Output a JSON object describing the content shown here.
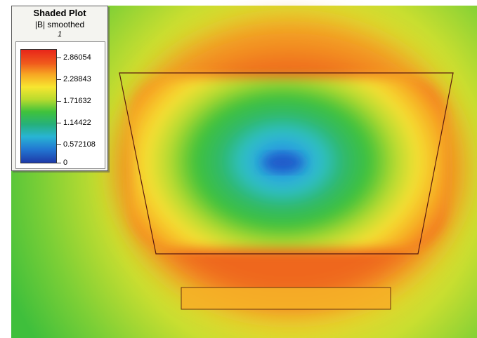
{
  "legend": {
    "title": "Shaded Plot",
    "quantity": "|B| smoothed",
    "index": "1",
    "ticks": [
      "2.86054",
      "2.28843",
      "1.71632",
      "1.14422",
      "0.572108",
      "0"
    ]
  },
  "colors": {
    "max": "#e8261a",
    "high": "#f7a823",
    "mid_high": "#f7e630",
    "mid": "#3fc23c",
    "low": "#28b4d4",
    "min": "#1e3aa8",
    "outline": "#5a1a10"
  }
}
